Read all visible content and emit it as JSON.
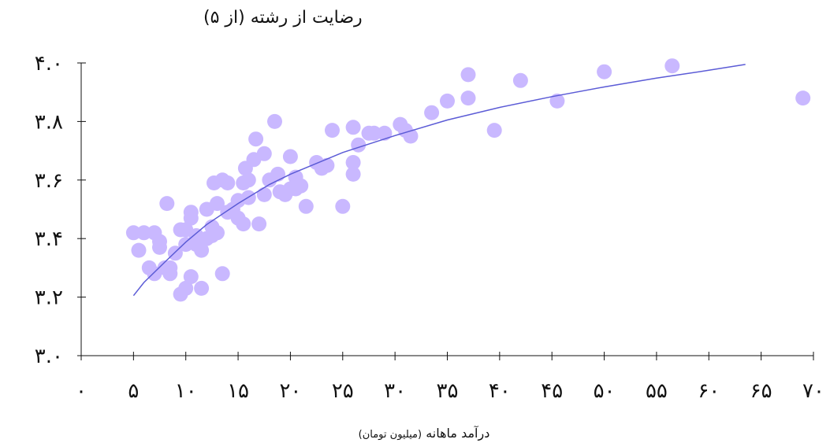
{
  "chart_data": {
    "type": "scatter",
    "title": "",
    "ylabel": "رضایت از رشته (از ۵)",
    "xlabel": "درآمد ماهانه",
    "xlabel_unit": "(میلیون تومان)",
    "xlim": [
      0,
      70
    ],
    "ylim": [
      3.0,
      4.0
    ],
    "x_ticks": [
      0,
      5,
      10,
      15,
      20,
      25,
      30,
      35,
      40,
      45,
      50,
      55,
      60,
      65,
      70
    ],
    "x_tick_labels": [
      "۰",
      "۵",
      "۱۰",
      "۱۵",
      "۲۰",
      "۲۵",
      "۳۰",
      "۳۵",
      "۴۰",
      "۴۵",
      "۵۰",
      "۵۵",
      "۶۰",
      "۶۵",
      "۷۰"
    ],
    "y_ticks": [
      3.0,
      3.2,
      3.4,
      3.6,
      3.8,
      4.0
    ],
    "y_tick_labels": [
      "۳.۰",
      "۳.۲",
      "۳.۴",
      "۳.۶",
      "۳.۸",
      "۴.۰"
    ],
    "grid": false,
    "point_color": "#c9b8ff",
    "trend_color": "#5b5bd6",
    "points": [
      [
        5.0,
        3.42
      ],
      [
        5.5,
        3.36
      ],
      [
        6.0,
        3.42
      ],
      [
        6.5,
        3.3
      ],
      [
        7.0,
        3.42
      ],
      [
        7.0,
        3.28
      ],
      [
        7.5,
        3.37
      ],
      [
        7.5,
        3.39
      ],
      [
        8.0,
        3.3
      ],
      [
        8.2,
        3.52
      ],
      [
        8.5,
        3.3
      ],
      [
        8.5,
        3.28
      ],
      [
        9.0,
        3.35
      ],
      [
        9.5,
        3.21
      ],
      [
        9.5,
        3.43
      ],
      [
        10.0,
        3.23
      ],
      [
        10.0,
        3.43
      ],
      [
        10.0,
        3.38
      ],
      [
        10.5,
        3.27
      ],
      [
        10.5,
        3.49
      ],
      [
        10.5,
        3.47
      ],
      [
        11.0,
        3.41
      ],
      [
        11.0,
        3.38
      ],
      [
        11.5,
        3.23
      ],
      [
        11.5,
        3.36
      ],
      [
        12.0,
        3.4
      ],
      [
        12.0,
        3.5
      ],
      [
        12.5,
        3.41
      ],
      [
        12.5,
        3.44
      ],
      [
        12.7,
        3.59
      ],
      [
        13.0,
        3.52
      ],
      [
        13.0,
        3.42
      ],
      [
        13.5,
        3.6
      ],
      [
        13.5,
        3.28
      ],
      [
        14.0,
        3.59
      ],
      [
        14.0,
        3.49
      ],
      [
        14.5,
        3.5
      ],
      [
        15.0,
        3.53
      ],
      [
        15.0,
        3.47
      ],
      [
        15.5,
        3.45
      ],
      [
        15.5,
        3.59
      ],
      [
        15.7,
        3.64
      ],
      [
        16.0,
        3.54
      ],
      [
        16.0,
        3.6
      ],
      [
        16.5,
        3.67
      ],
      [
        16.7,
        3.74
      ],
      [
        17.0,
        3.45
      ],
      [
        17.5,
        3.69
      ],
      [
        17.5,
        3.55
      ],
      [
        18.0,
        3.6
      ],
      [
        18.5,
        3.8
      ],
      [
        18.8,
        3.62
      ],
      [
        19.0,
        3.56
      ],
      [
        19.5,
        3.55
      ],
      [
        20.0,
        3.57
      ],
      [
        20.0,
        3.68
      ],
      [
        20.5,
        3.58
      ],
      [
        20.5,
        3.61
      ],
      [
        20.5,
        3.57
      ],
      [
        21.0,
        3.58
      ],
      [
        21.5,
        3.51
      ],
      [
        22.5,
        3.66
      ],
      [
        23.0,
        3.64
      ],
      [
        23.5,
        3.65
      ],
      [
        24.0,
        3.77
      ],
      [
        25.0,
        3.51
      ],
      [
        26.0,
        3.78
      ],
      [
        26.0,
        3.62
      ],
      [
        26.0,
        3.66
      ],
      [
        26.5,
        3.72
      ],
      [
        27.5,
        3.76
      ],
      [
        28.0,
        3.76
      ],
      [
        29.0,
        3.76
      ],
      [
        30.5,
        3.79
      ],
      [
        31.0,
        3.77
      ],
      [
        31.5,
        3.75
      ],
      [
        33.5,
        3.83
      ],
      [
        35.0,
        3.87
      ],
      [
        37.0,
        3.88
      ],
      [
        37.0,
        3.96
      ],
      [
        39.5,
        3.77
      ],
      [
        42.0,
        3.94
      ],
      [
        45.5,
        3.87
      ],
      [
        50.0,
        3.97
      ],
      [
        56.5,
        3.99
      ],
      [
        69.0,
        3.88
      ]
    ],
    "trend": [
      [
        5,
        3.205
      ],
      [
        6,
        3.25
      ],
      [
        8,
        3.32
      ],
      [
        10,
        3.388
      ],
      [
        12,
        3.448
      ],
      [
        15,
        3.52
      ],
      [
        18,
        3.585
      ],
      [
        20,
        3.62
      ],
      [
        25,
        3.694
      ],
      [
        30,
        3.752
      ],
      [
        35,
        3.805
      ],
      [
        40,
        3.848
      ],
      [
        45,
        3.885
      ],
      [
        50,
        3.918
      ],
      [
        55,
        3.948
      ],
      [
        60,
        3.975
      ],
      [
        63.5,
        3.995
      ]
    ]
  }
}
